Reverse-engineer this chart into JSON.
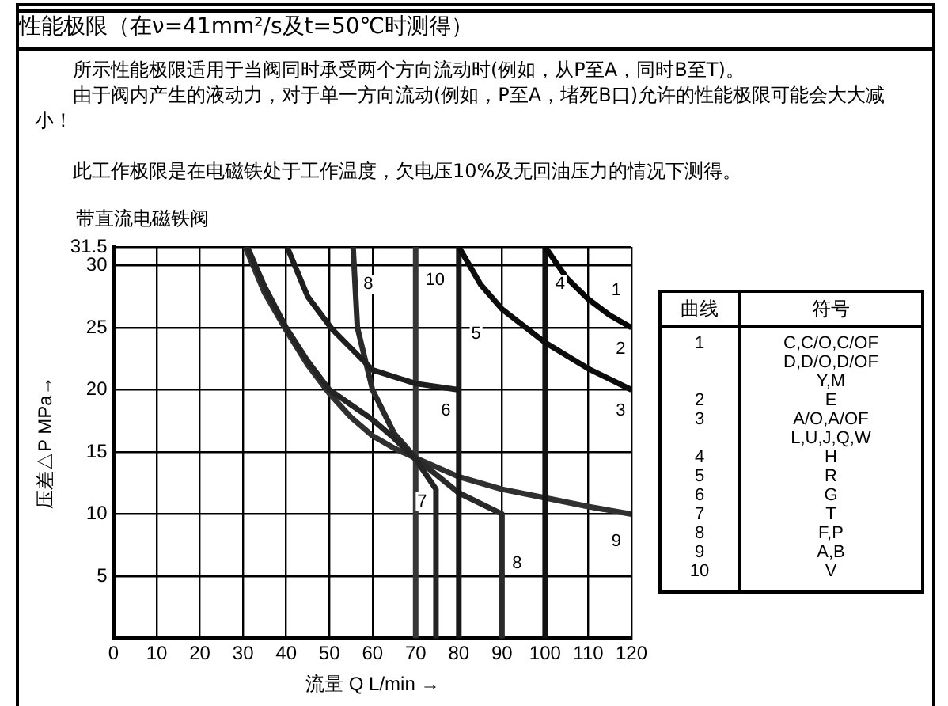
{
  "chart_data": {
    "type": "line",
    "title": "性能极限（在ν=41mm²/s及t=50℃时测得）",
    "subtitle": "带直流电磁铁阀",
    "xlabel": "流量 Q L/min →",
    "ylabel": "压差△P MPa→",
    "xlim": [
      0,
      120
    ],
    "xticks": [
      0,
      10,
      20,
      30,
      40,
      50,
      60,
      70,
      80,
      90,
      100,
      110,
      120
    ],
    "ylim": [
      0,
      31.5
    ],
    "yticks": [
      {
        "value": 0,
        "label": null
      },
      5,
      10,
      15,
      20,
      25,
      30,
      31.5
    ],
    "grid": true,
    "legend": false,
    "marker": "none",
    "line_style": "solid",
    "series": [
      {
        "color": "#060606",
        "x": [
          100,
          105,
          110,
          115,
          120
        ],
        "values": [
          31.5,
          29,
          27.3,
          26,
          25
        ]
      },
      {
        "color": "#0c0c0c",
        "x": [
          80,
          85,
          90,
          100,
          110,
          120
        ],
        "values": [
          31.5,
          28.5,
          26.5,
          23.8,
          21.7,
          20
        ]
      },
      {
        "color": "#121212",
        "x": [
          100,
          100
        ],
        "values": [
          0,
          31.5
        ]
      },
      {
        "color": "#181818",
        "x": [
          80,
          80
        ],
        "values": [
          0,
          31.5
        ]
      },
      {
        "color": "#1e1e1e",
        "x": [
          40.2,
          45,
          50.6,
          60,
          70,
          80
        ],
        "values": [
          31.5,
          27.5,
          24.9,
          21.6,
          20.5,
          20
        ]
      },
      {
        "color": "#242424",
        "x": [
          31,
          35,
          40,
          45,
          50,
          55,
          60,
          65,
          70,
          74.7,
          74.7
        ],
        "values": [
          31.5,
          28.3,
          25,
          22.3,
          20,
          18.8,
          17.6,
          16.1,
          14.4,
          12,
          0
        ]
      },
      {
        "color": "#2a2a2a",
        "x": [
          55.5,
          56.5,
          60,
          65,
          70,
          80,
          90,
          90
        ],
        "values": [
          31.5,
          25,
          20,
          16.5,
          14.5,
          11.7,
          10,
          0
        ]
      },
      {
        "color": "#303030",
        "x": [
          30.5,
          35,
          40,
          45,
          50,
          55,
          60,
          65,
          70,
          80,
          90,
          100,
          110,
          120
        ],
        "values": [
          31.5,
          27.8,
          24.8,
          22,
          19.7,
          17.8,
          16.3,
          15.3,
          14.5,
          13,
          12,
          11.3,
          10.6,
          10
        ]
      },
      {
        "color": "#363636",
        "x": [
          70,
          70
        ],
        "values": [
          0,
          31.5
        ]
      }
    ],
    "annotations": [
      "所示性能极限适用于当阀同时承受两个方向流动时(例如，从P至A，同时B至T)。",
      "由于阀内产生的液动力，对于单一方向流动(例如，P至A，堵死B口)允许的性能极限可能会大大减小！",
      "此工作极限是在电磁铁处于工作温度，欠电压10%及无回油压力的情况下测得。",
      "曲线",
      "符号",
      "1",
      "C,C/O,C/OF\nD,D/O,D/OF\nY,M",
      "2",
      "E",
      "3",
      "A/O,A/OF\nL,U,J,Q,W",
      "4",
      "H",
      "5",
      "R",
      "6",
      "G",
      "7",
      "T",
      "8",
      "F,P",
      "9",
      "A,B",
      "10",
      "V",
      "1",
      "2",
      "3",
      "4",
      "5",
      "6",
      "7",
      "8",
      "8",
      "9",
      "10"
    ]
  }
}
